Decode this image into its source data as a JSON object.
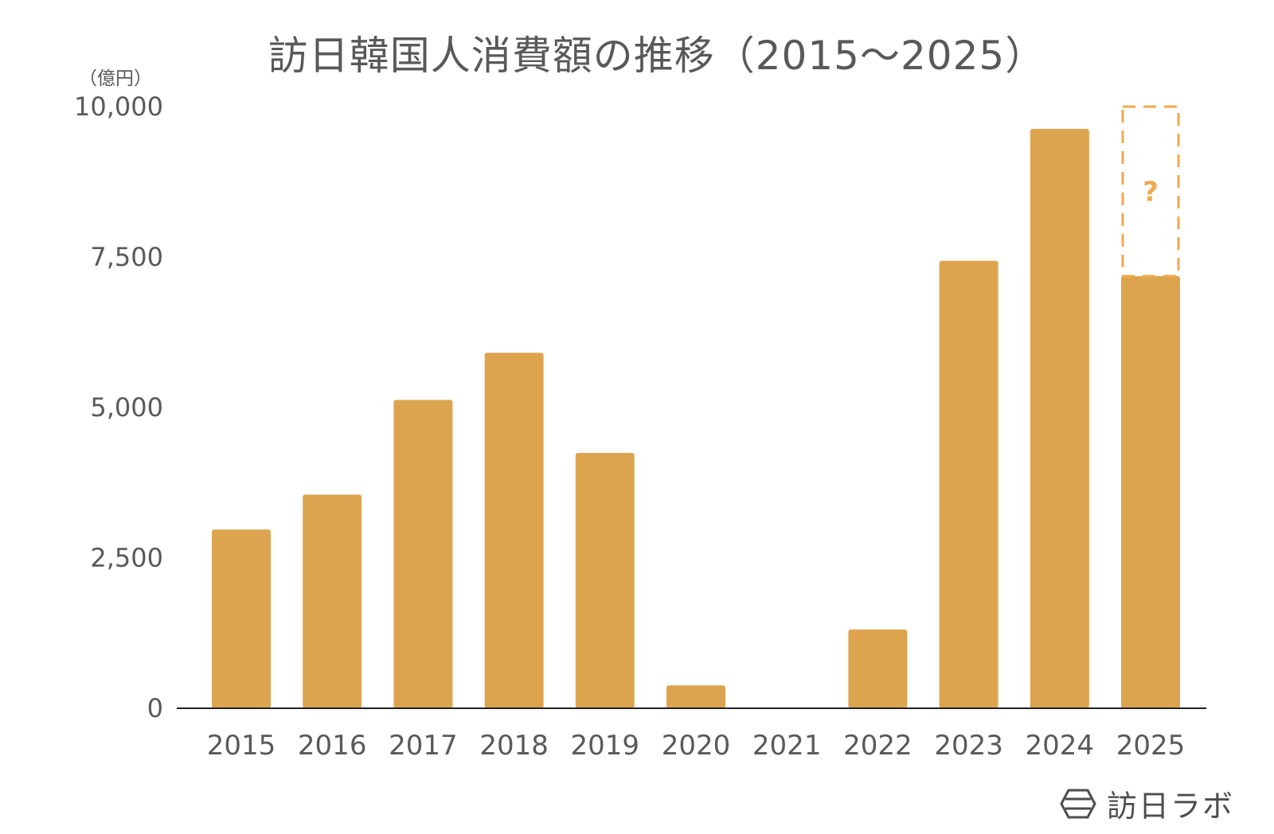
{
  "chart_data": {
    "type": "bar",
    "title": "訪日韓国人消費額の推移（2015〜2025）",
    "unit_label": "（億円）",
    "categories": [
      "2015",
      "2016",
      "2017",
      "2018",
      "2019",
      "2020",
      "2021",
      "2022",
      "2023",
      "2024",
      "2025"
    ],
    "values": [
      2972,
      3552,
      5126,
      5910,
      4244,
      380,
      0,
      1310,
      7437,
      9632,
      7183
    ],
    "projection": {
      "category": "2025",
      "top": 10000,
      "label": "?"
    },
    "yticks": [
      "0",
      "2,500",
      "5,000",
      "7,500",
      "10,000"
    ],
    "ytick_values": [
      0,
      2500,
      5000,
      7500,
      10000
    ],
    "ylim": [
      0,
      10000
    ],
    "grid": false,
    "colors": {
      "bar": "#dda450",
      "projection": "#f0a94e",
      "axis": "#222222"
    }
  },
  "brand": {
    "name": "訪日ラボ",
    "icon": "hexagon-logo-icon"
  }
}
